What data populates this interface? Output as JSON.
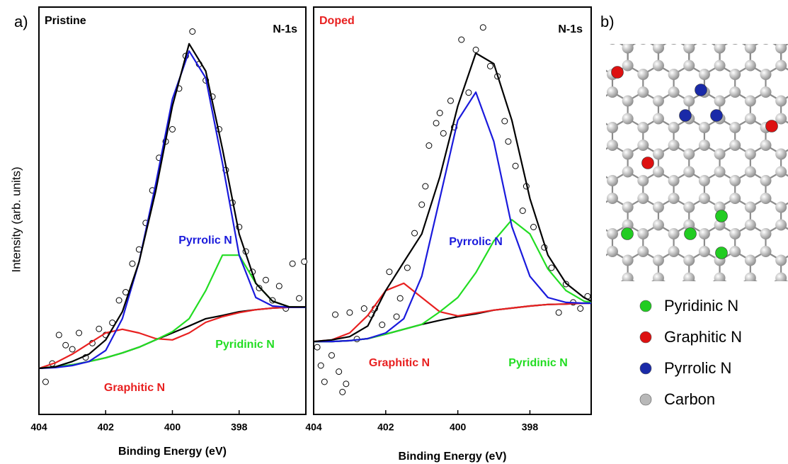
{
  "chart_data": [
    {
      "type": "line",
      "panel_label": "a)",
      "title": "Pristine",
      "title_color": "#000000",
      "subtitle": "N-1s",
      "xlabel": "Binding Energy (eV)",
      "ylabel": "Intensity (arb. units)",
      "xlim": [
        404,
        396
      ],
      "ylim": [
        0,
        100
      ],
      "xticks": [
        404,
        402,
        400,
        398
      ],
      "x": [
        404,
        403.5,
        403,
        402.5,
        402,
        401.5,
        401,
        400.5,
        400,
        399.5,
        399,
        398.5,
        398,
        397.5,
        397,
        396.5,
        396
      ],
      "series": [
        {
          "kind": "points",
          "color": "#000000",
          "x": [
            403.8,
            403.6,
            403.4,
            403.2,
            403.0,
            402.8,
            402.6,
            402.4,
            402.2,
            402.0,
            401.8,
            401.6,
            401.4,
            401.2,
            401.0,
            400.8,
            400.6,
            400.4,
            400.2,
            400.0,
            399.8,
            399.6,
            399.4,
            399.2,
            399.0,
            398.8,
            398.6,
            398.4,
            398.2,
            398.0,
            397.8,
            397.6,
            397.4,
            397.2,
            397.0,
            396.8,
            396.6,
            396.4,
            396.2,
            396.05
          ],
          "values": [
            8.0,
            12.5,
            19.5,
            17.0,
            16.0,
            20.0,
            14.0,
            17.5,
            21.0,
            19.5,
            22.5,
            28.0,
            30.0,
            37.0,
            40.5,
            47.0,
            55.0,
            63.0,
            67.0,
            70.0,
            80.0,
            88.0,
            94.0,
            86.0,
            82.0,
            78.0,
            70.0,
            60.0,
            52.0,
            46.0,
            40.0,
            35.0,
            31.0,
            33.0,
            28.0,
            31.5,
            26.0,
            37.0,
            28.5,
            37.5
          ]
        },
        {
          "kind": "line",
          "color": "#000000",
          "values": [
            11.3,
            11.7,
            12.2,
            13.0,
            13.9,
            15.1,
            16.5,
            18.3,
            20.0,
            21.7,
            23.5,
            24.3,
            25.2,
            25.7,
            26.1,
            26.3,
            26.3
          ]
        },
        {
          "kind": "line",
          "name": "Graphitic N",
          "color": "#e82020",
          "values": [
            11.3,
            12.7,
            14.8,
            17.4,
            20.0,
            20.9,
            20.0,
            18.6,
            18.3,
            20.0,
            22.6,
            24.0,
            25.0,
            25.7,
            26.1,
            26.3,
            26.3
          ]
        },
        {
          "kind": "line",
          "name": "Pyridinic N",
          "color": "#22dd22",
          "values": [
            11.3,
            11.7,
            12.2,
            13.0,
            13.9,
            15.1,
            16.5,
            18.3,
            20.3,
            23.5,
            30.4,
            39.1,
            39.1,
            32.2,
            27.8,
            26.4,
            26.3
          ]
        },
        {
          "kind": "line",
          "name": "Pyrrolic N",
          "color": "#1a1adc",
          "values": [
            11.3,
            11.5,
            12.0,
            13.0,
            15.7,
            23.5,
            37.4,
            56.5,
            77.4,
            89.2,
            82.6,
            61.7,
            39.1,
            28.7,
            26.6,
            26.3,
            26.3
          ]
        },
        {
          "kind": "line",
          "color": "#000000",
          "values": [
            11.3,
            11.7,
            13.0,
            14.8,
            18.3,
            25.2,
            37.4,
            54.8,
            75.7,
            91.0,
            84.3,
            65.2,
            44.3,
            32.2,
            27.8,
            26.4,
            26.4
          ]
        }
      ]
    },
    {
      "type": "line",
      "title": "Doped",
      "title_color": "#e82020",
      "subtitle": "N-1s",
      "xlabel": "Binding Energy (eV)",
      "xlim": [
        404,
        396.3
      ],
      "ylim": [
        0,
        100
      ],
      "xticks": [
        404,
        402,
        400,
        398
      ],
      "x": [
        404,
        403.5,
        403,
        402.5,
        402,
        401.5,
        401,
        400.5,
        400,
        399.5,
        399,
        398.5,
        398,
        397.5,
        397,
        396.5,
        396.3
      ],
      "series": [
        {
          "kind": "points",
          "color": "#000000",
          "x": [
            403.9,
            403.8,
            403.7,
            403.5,
            403.4,
            403.3,
            403.2,
            403.1,
            403.0,
            402.8,
            402.6,
            402.4,
            402.3,
            402.1,
            401.9,
            401.7,
            401.6,
            401.4,
            401.2,
            401.0,
            400.9,
            400.8,
            400.6,
            400.5,
            400.4,
            400.2,
            400.1,
            399.9,
            399.7,
            399.5,
            399.3,
            399.1,
            398.9,
            398.7,
            398.6,
            398.4,
            398.2,
            398.1,
            397.9,
            397.6,
            397.4,
            397.2,
            397.0,
            396.8,
            396.6,
            396.4
          ],
          "values": [
            16.5,
            12.0,
            8.0,
            14.5,
            24.5,
            10.5,
            5.5,
            7.5,
            25.0,
            18.5,
            26.0,
            24.5,
            26.0,
            22.0,
            35.0,
            24.0,
            28.5,
            36.0,
            44.5,
            51.5,
            56.0,
            66.0,
            71.5,
            74.0,
            69.0,
            77.0,
            70.5,
            92.0,
            79.0,
            89.5,
            95.0,
            85.5,
            83.0,
            72.0,
            67.0,
            61.0,
            50.0,
            56.0,
            46.0,
            41.0,
            36.0,
            25.0,
            32.0,
            27.5,
            26.0,
            29.0
          ]
        },
        {
          "kind": "line",
          "color": "#000000",
          "values": [
            17.9,
            17.9,
            18.1,
            18.6,
            19.7,
            20.9,
            22.1,
            23.1,
            24.0,
            24.7,
            25.6,
            26.1,
            26.6,
            27.0,
            27.1,
            27.3,
            27.3
          ]
        },
        {
          "kind": "line",
          "name": "Graphitic N",
          "color": "#e82020",
          "values": [
            17.9,
            18.3,
            20.0,
            24.3,
            30.4,
            32.2,
            28.7,
            25.2,
            24.2,
            24.9,
            25.6,
            26.1,
            26.6,
            27.0,
            27.1,
            27.3,
            27.3
          ]
        },
        {
          "kind": "line",
          "name": "Pyridinic N",
          "color": "#22dd22",
          "values": [
            17.9,
            17.9,
            18.1,
            18.6,
            19.7,
            20.9,
            22.1,
            25.2,
            28.7,
            34.8,
            42.6,
            47.8,
            44.3,
            35.7,
            30.4,
            27.8,
            27.5
          ]
        },
        {
          "kind": "line",
          "name": "Pyrrolic N",
          "color": "#1a1adc",
          "values": [
            17.9,
            17.9,
            18.1,
            18.6,
            20.0,
            23.5,
            33.9,
            53.0,
            72.2,
            79.1,
            67.0,
            46.1,
            33.9,
            28.7,
            27.5,
            27.3,
            27.3
          ]
        },
        {
          "kind": "line",
          "color": "#000000",
          "values": [
            17.9,
            18.3,
            19.1,
            21.7,
            30.4,
            37.4,
            44.3,
            58.3,
            75.7,
            88.7,
            86.1,
            72.2,
            53.0,
            39.1,
            32.2,
            28.7,
            27.8
          ]
        }
      ]
    }
  ],
  "diagram": {
    "panel_label": "b)",
    "legend": [
      {
        "label": "Pyridinic N",
        "color": "#22cc22"
      },
      {
        "label": "Graphitic N",
        "color": "#dd1111"
      },
      {
        "label": "Pyrrolic N",
        "color": "#1a2aa8"
      },
      {
        "label": "Carbon",
        "color": "#b8b8b8"
      }
    ]
  }
}
